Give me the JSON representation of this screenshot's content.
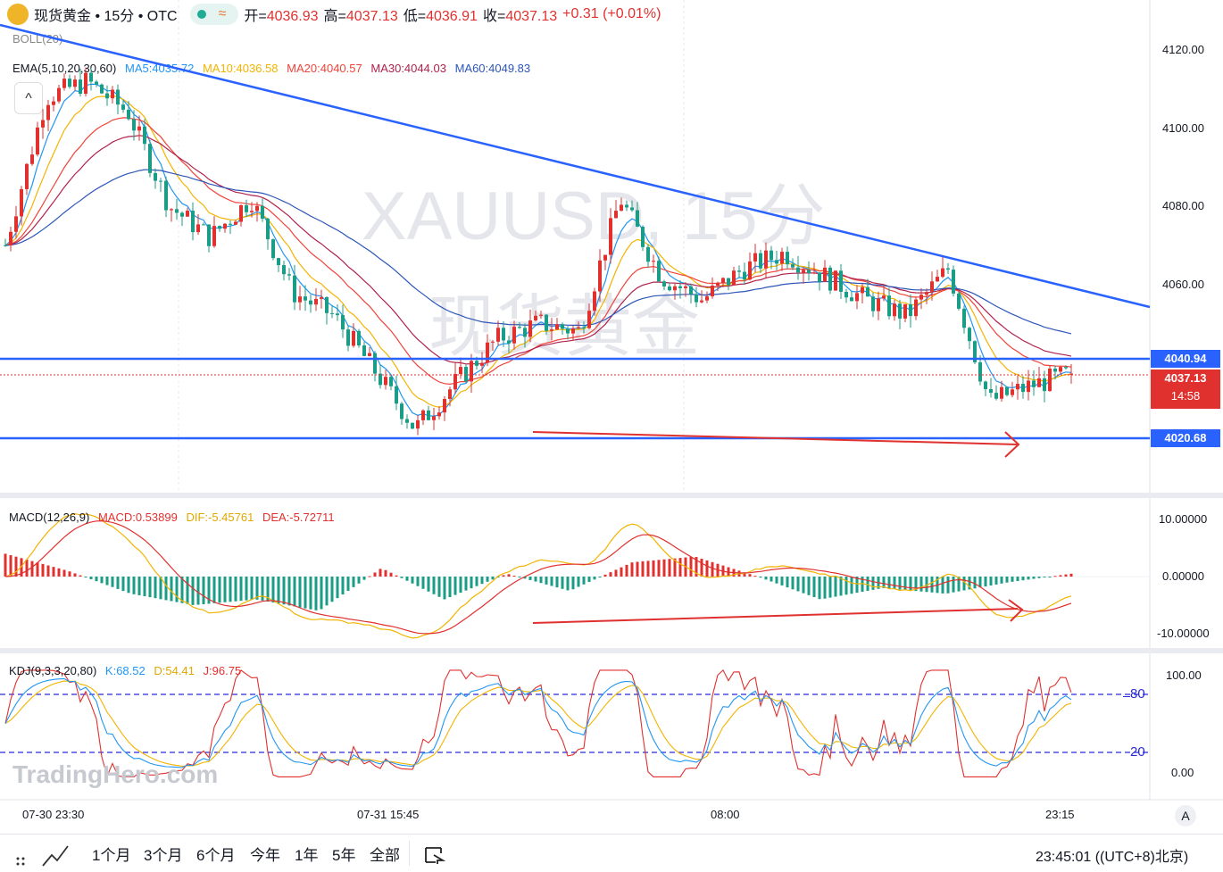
{
  "header": {
    "symbol_line": "现货黄金 • 15分 • OTC",
    "wave_icon": "≈",
    "open_label": "开=",
    "open": "4036.93",
    "high_label": "高=",
    "high": "4037.13",
    "low_label": "低=",
    "low": "4036.91",
    "close_label": "收=",
    "close": "4037.13",
    "change": "+0.31 (+0.01%)"
  },
  "indicators": {
    "boll": "BOLL(20)",
    "ema_title": "EMA(5,10,20,30,60)",
    "ma5": "MA5:4035.72",
    "ma10": "MA10:4036.58",
    "ma20": "MA20:4040.57",
    "ma30": "MA30:4044.03",
    "ma60": "MA60:4049.83",
    "collapse": "^"
  },
  "watermark": {
    "line1": "XAUUSD, 15分",
    "line2": "现货黄金"
  },
  "price_axis": {
    "ticks": [
      "4120.00",
      "4100.00",
      "4080.00",
      "4060.00"
    ]
  },
  "price_tags": {
    "resistance": "4040.94",
    "last": "4037.13",
    "countdown": "14:58",
    "support": "4020.68"
  },
  "macd": {
    "title": "MACD(12,26,9)",
    "macd": "MACD:0.53899",
    "dif": "DIF:-5.45761",
    "dea": "DEA:-5.72711",
    "ticks": [
      "10.00000",
      "0.00000",
      "-10.00000"
    ]
  },
  "kdj": {
    "title": "KDJ(9,3,3,20,80)",
    "k": "K:68.52",
    "d": "D:54.41",
    "j": "J:96.75",
    "ticks": [
      "100.00",
      "0.00"
    ],
    "level_hi": "80",
    "level_lo": "20"
  },
  "brand": "TradingHero.com",
  "time_axis": {
    "labels": [
      "07-30 23:30",
      "07-31 15:45",
      "08:00",
      "23:15"
    ],
    "auto": "A"
  },
  "bottom_bar": {
    "ranges": [
      "1个月",
      "3个月",
      "6个月",
      "今年",
      "1年",
      "5年",
      "全部"
    ],
    "clock": "23:45:01 ((UTC+8)北京)"
  },
  "colors": {
    "up": "#e0312f",
    "down": "#1a9c86",
    "trendline": "#2962ff",
    "ema5": "#2196f3",
    "ema10": "#f2b400",
    "ema20": "#f0433a",
    "ema30": "#b0224d",
    "ema60": "#2d56b9"
  },
  "chart_data": [
    {
      "type": "candlestick",
      "title": "XAUUSD, 15分",
      "ylim": [
        4012,
        4132
      ],
      "x_labels": [
        "07-30 23:30",
        "07-31 15:45",
        "08:00",
        "23:15"
      ],
      "ohlc_anchor_closes": [
        4070,
        4108,
        4112,
        4104,
        4080,
        4072,
        4082,
        4058,
        4052,
        4038,
        4023,
        4035,
        4046,
        4050,
        4048,
        4082,
        4062,
        4056,
        4064,
        4068,
        4062,
        4056,
        4052,
        4064,
        4030,
        4034,
        4037.13
      ],
      "last_bar": {
        "open": 4036.93,
        "high": 4037.13,
        "low": 4036.91,
        "close": 4037.13
      },
      "horizontal_levels": [
        4040.94,
        4020.68
      ],
      "trendline": [
        [
          0,
          4126
        ],
        [
          1,
          4055
        ]
      ],
      "ema_last": {
        "EMA5": 4035.72,
        "EMA10": 4036.58,
        "EMA20": 4040.57,
        "EMA30": 4044.03,
        "EMA60": 4049.83
      }
    },
    {
      "type": "bar",
      "title": "MACD(12,26,9)",
      "ylim": [
        -14,
        14
      ],
      "histogram_anchors": [
        4,
        1,
        -3,
        -5,
        -4,
        -6,
        1.5,
        -4,
        0.5,
        -2.5,
        2.5,
        3.5,
        0,
        -4,
        -2,
        -3,
        -1,
        0.5
      ],
      "dif_last": -5.45761,
      "dea_last": -5.72711,
      "macd_last": 0.53899
    },
    {
      "type": "line",
      "title": "KDJ(9,3,3,20,80)",
      "ylim": [
        -10,
        110
      ],
      "series": [
        {
          "name": "K",
          "last": 68.52
        },
        {
          "name": "D",
          "last": 54.41
        },
        {
          "name": "J",
          "last": 96.75
        }
      ],
      "levels": [
        80,
        20
      ]
    }
  ]
}
